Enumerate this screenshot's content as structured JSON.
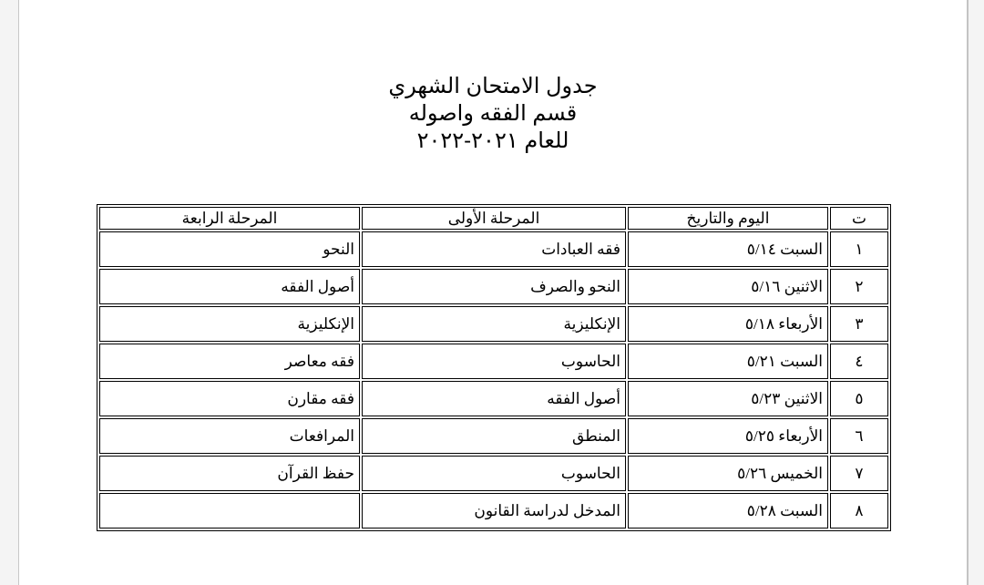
{
  "title_lines": [
    "جدول الامتحان الشهري",
    "قسم الفقه واصوله",
    "للعام ٢٠٢١-٢٠٢٢"
  ],
  "table": {
    "headers": [
      "ت",
      "اليوم والتاريخ",
      "المرحلة الأولى",
      "المرحلة الرابعة"
    ],
    "rows": [
      [
        "١",
        "السبت ٥/١٤",
        "فقه العبادات",
        "النحو"
      ],
      [
        "٢",
        "الاثنين ٥/١٦",
        "النحو والصرف",
        "أصول الفقه"
      ],
      [
        "٣",
        "الأربعاء ٥/١٨",
        "الإنكليزية",
        "الإنكليزية"
      ],
      [
        "٤",
        "السبت ٥/٢١",
        "الحاسوب",
        "فقه معاصر"
      ],
      [
        "٥",
        "الاثنين ٥/٢٣",
        "أصول الفقه",
        "فقه مقارن"
      ],
      [
        "٦",
        "الأربعاء ٥/٢٥",
        "المنطق",
        "المرافعات"
      ],
      [
        "٧",
        "الخميس ٥/٢٦",
        "الحاسوب",
        "حفظ القرآن"
      ],
      [
        "٨",
        "السبت ٥/٢٨",
        "المدخل لدراسة القانون",
        ""
      ]
    ]
  }
}
